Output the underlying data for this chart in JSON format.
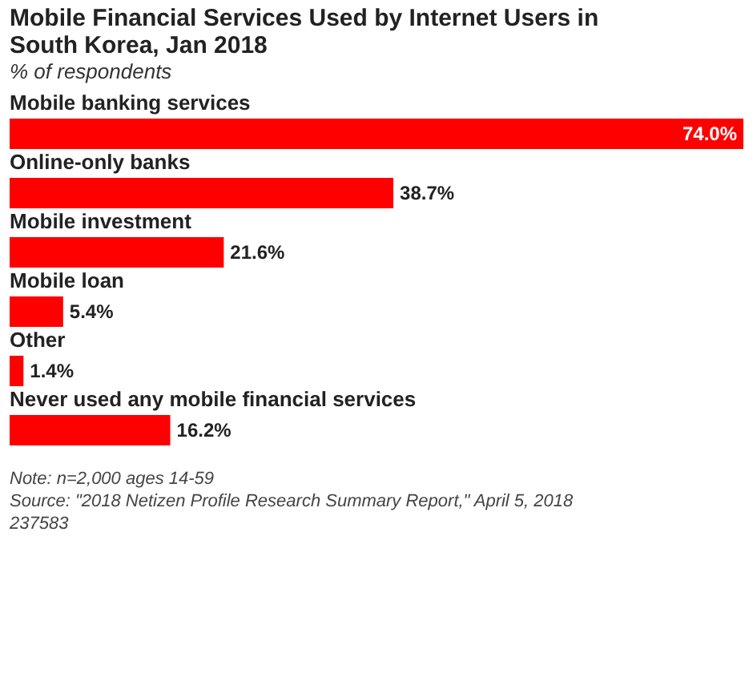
{
  "chart_data": {
    "type": "bar",
    "orientation": "horizontal",
    "title": "Mobile Financial Services Used by Internet Users in South Korea, Jan 2018",
    "subtitle": "% of respondents",
    "categories": [
      "Mobile banking services",
      "Online-only banks",
      "Mobile investment",
      "Mobile loan",
      "Other",
      "Never used any mobile financial services"
    ],
    "values": [
      74.0,
      38.7,
      21.6,
      5.4,
      1.4,
      16.2
    ],
    "value_labels": [
      "74.0%",
      "38.7%",
      "21.6%",
      "5.4%",
      "1.4%",
      "16.2%"
    ],
    "color": "#ff0000",
    "annotations": [
      "Note: n=2,000 ages 14-59",
      "Source: \"2018 Netizen Profile Research Summary Report,\" April 5, 2018",
      "237583"
    ]
  }
}
